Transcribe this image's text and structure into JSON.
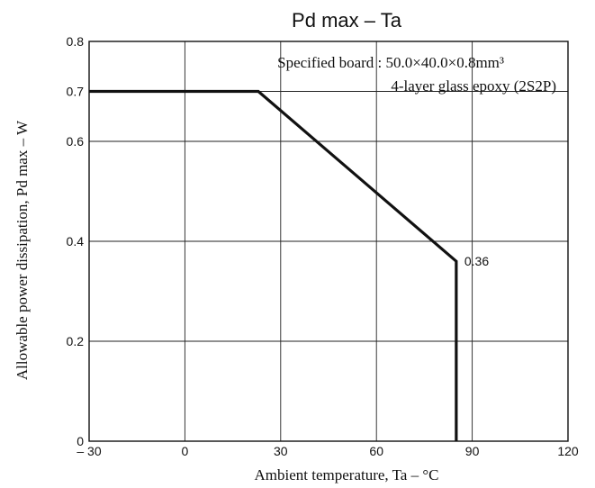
{
  "chart_data": {
    "type": "line",
    "title": "Pd max  –  Ta",
    "xlabel": "Ambient temperature,  Ta  –  °C",
    "ylabel": "Allowable power dissipation,  Pd max  –  W",
    "xlim": [
      -30,
      120
    ],
    "ylim": [
      0,
      0.8
    ],
    "x_ticks": [
      -30,
      0,
      30,
      60,
      90,
      120
    ],
    "x_tick_labels": [
      "– 30",
      "0",
      "30",
      "60",
      "90",
      "120"
    ],
    "y_ticks": [
      0,
      0.2,
      0.4,
      0.6,
      0.7,
      0.8
    ],
    "y_tick_labels": [
      "0",
      "0.2",
      "0.4",
      "0.6",
      "0.7",
      "0.8"
    ],
    "grid": true,
    "series": [
      {
        "x": [
          -30,
          23,
          85,
          85
        ],
        "y": [
          0.7,
          0.7,
          0.36,
          0
        ]
      }
    ],
    "annotations": [
      "Specified board : 50.0×40.0×0.8mm³",
      "4-layer glass epoxy (2S2P)"
    ],
    "data_labels": [
      {
        "x": 85,
        "y": 0.36,
        "text": "0.36"
      }
    ]
  }
}
